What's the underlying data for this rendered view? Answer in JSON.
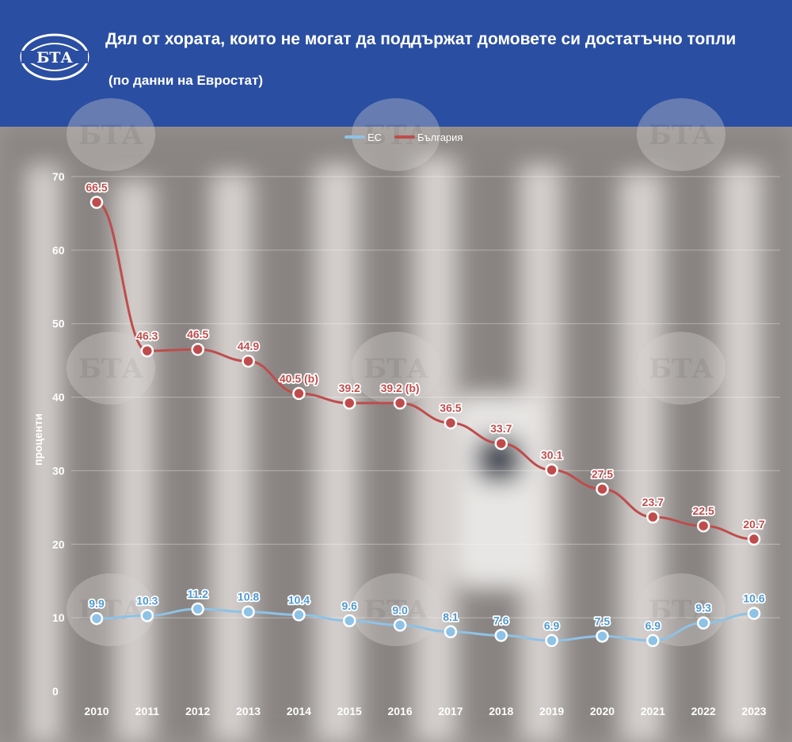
{
  "header": {
    "logo_text": "БТА",
    "title": "Дял от хората, които не могат да поддържат домовете си достатъчно топли",
    "subtitle": "(по данни на Евростат)"
  },
  "watermark_text": "БТА",
  "colors": {
    "header_bg": "#2a4ea1",
    "eu": "#8ec2e6",
    "eu_label": "#4f9ad1",
    "bg": "#bf4c4c",
    "bg_label": "#bf4c4c"
  },
  "chart_data": {
    "type": "line",
    "title": "Дял от хората, които не могат да поддържат домовете си достатъчно топли",
    "subtitle": "(по данни на Евростат)",
    "xlabel": "",
    "ylabel": "проценти",
    "categories": [
      "2010",
      "2011",
      "2012",
      "2013",
      "2014",
      "2015",
      "2016",
      "2017",
      "2018",
      "2019",
      "2020",
      "2021",
      "2022",
      "2023"
    ],
    "ylim": [
      0,
      70
    ],
    "yticks": [
      0,
      10,
      20,
      30,
      40,
      50,
      60,
      70
    ],
    "grid": true,
    "legend_position": "top-center",
    "series": [
      {
        "name": "ЕС",
        "values": [
          9.9,
          10.3,
          11.2,
          10.8,
          10.4,
          9.6,
          9.0,
          8.1,
          7.6,
          6.9,
          7.5,
          6.9,
          9.3,
          10.6
        ],
        "labels": [
          "9.9",
          "10.3",
          "11.2",
          "10.8",
          "10.4",
          "9.6",
          "9.0",
          "8.1",
          "7.6",
          "6.9",
          "7.5",
          "6.9",
          "9.3",
          "10.6"
        ]
      },
      {
        "name": "България",
        "values": [
          66.5,
          46.3,
          46.5,
          44.9,
          40.5,
          39.2,
          39.2,
          36.5,
          33.7,
          30.1,
          27.5,
          23.7,
          22.5,
          20.7
        ],
        "labels": [
          "66.5",
          "46.3",
          "46.5",
          "44.9",
          "40.5 (b)",
          "39.2",
          "39.2 (b)",
          "36.5",
          "33.7",
          "30.1",
          "27.5",
          "23.7",
          "22.5",
          "20.7"
        ]
      }
    ]
  }
}
